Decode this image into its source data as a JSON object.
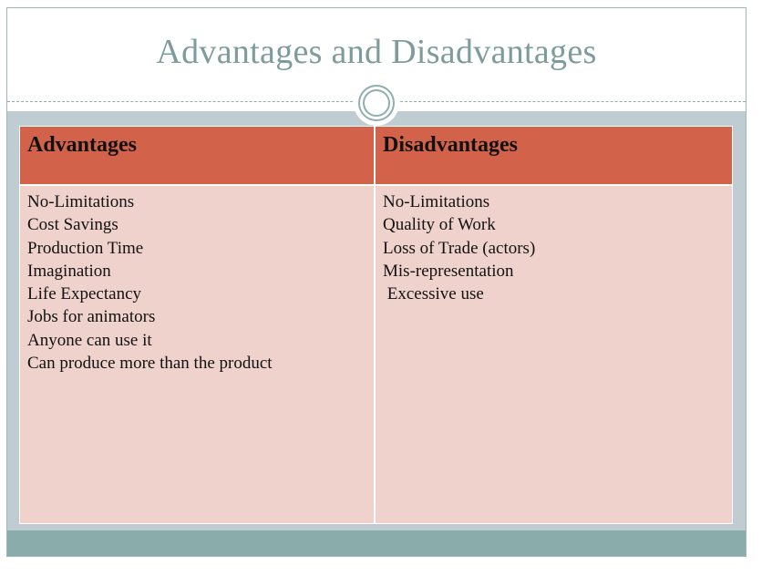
{
  "slide": {
    "title": "Advantages and Disadvantages"
  },
  "table": {
    "headers": {
      "advantages": "Advantages",
      "disadvantages": "Disadvantages"
    },
    "advantages": [
      "No-Limitations",
      "Cost Savings",
      "Production Time",
      "Imagination",
      "Life Expectancy",
      "Jobs for animators",
      "Anyone can use it",
      "Can produce more than the product"
    ],
    "disadvantages": [
      "No-Limitations",
      "Quality of Work",
      "Loss of Trade (actors)",
      "Mis-representation",
      " Excessive use"
    ]
  },
  "colors": {
    "title": "#7f9c9c",
    "header_fill": "#d2634a",
    "cell_fill": "#f0d2cd",
    "body_background": "#bfcdd2",
    "bottom_bar": "#8aacab"
  }
}
